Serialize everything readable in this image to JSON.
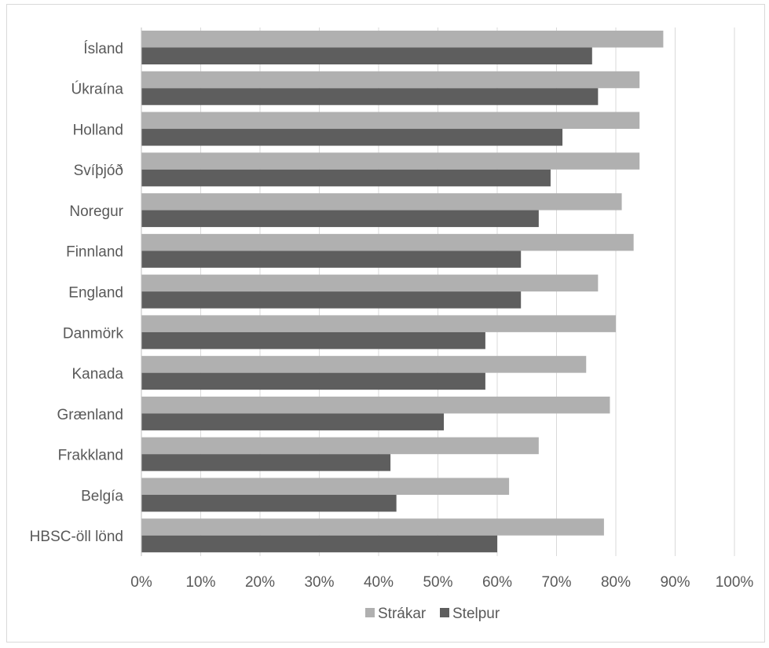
{
  "chart_data": {
    "type": "bar",
    "orientation": "horizontal",
    "categories": [
      "Ísland",
      "Úkraína",
      "Holland",
      "Svíþjóð",
      "Noregur",
      "Finnland",
      "England",
      "Danmörk",
      "Kanada",
      "Grænland",
      "Frakkland",
      "Belgía",
      "HBSC-öll lönd"
    ],
    "series": [
      {
        "name": "Strákar",
        "color": "#b0b0b0",
        "values": [
          88,
          84,
          84,
          84,
          81,
          83,
          77,
          80,
          75,
          79,
          67,
          62,
          78
        ]
      },
      {
        "name": "Stelpur",
        "color": "#5e5e5e",
        "values": [
          76,
          77,
          71,
          69,
          67,
          64,
          64,
          58,
          58,
          51,
          42,
          43,
          60
        ]
      }
    ],
    "xlim": [
      0,
      100
    ],
    "x_ticks": [
      0,
      10,
      20,
      30,
      40,
      50,
      60,
      70,
      80,
      90,
      100
    ],
    "x_tick_labels": [
      "0%",
      "10%",
      "20%",
      "30%",
      "40%",
      "50%",
      "60%",
      "70%",
      "80%",
      "90%",
      "100%"
    ],
    "grid": true,
    "legend": "bottom",
    "title": "",
    "xlabel": "",
    "ylabel": ""
  }
}
